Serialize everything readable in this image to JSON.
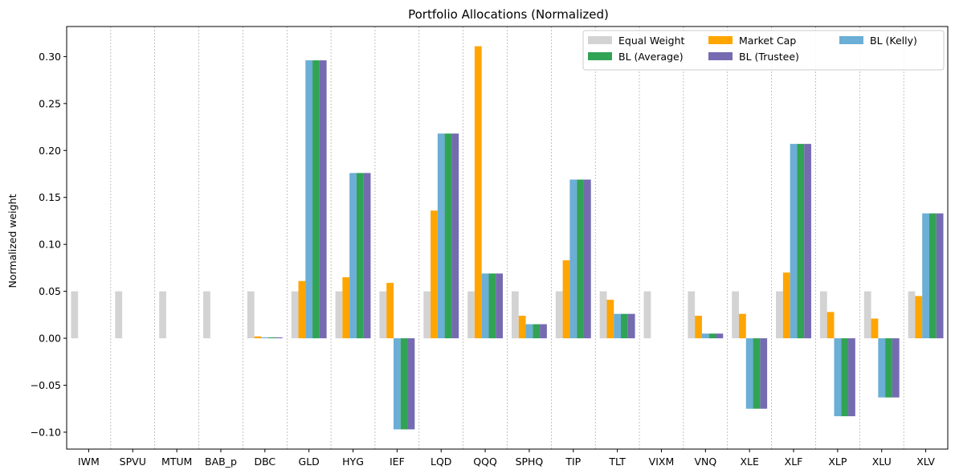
{
  "chart_data": {
    "type": "bar",
    "title": "Portfolio Allocations (Normalized)",
    "xlabel": "",
    "ylabel": "Normalized weight",
    "ylim": [
      -0.118,
      0.332
    ],
    "yticks": [
      -0.1,
      -0.05,
      0.0,
      0.05,
      0.1,
      0.15,
      0.2,
      0.25,
      0.3
    ],
    "ytick_labels": [
      "−0.10",
      "−0.05",
      "0.00",
      "0.05",
      "0.10",
      "0.15",
      "0.20",
      "0.25",
      "0.30"
    ],
    "categories": [
      "IWM",
      "SPVU",
      "MTUM",
      "BAB_p",
      "DBC",
      "GLD",
      "HYG",
      "IEF",
      "LQD",
      "QQQ",
      "SPHQ",
      "TIP",
      "TLT",
      "VIXM",
      "VNQ",
      "XLE",
      "XLF",
      "XLP",
      "XLU",
      "XLV"
    ],
    "grid": "vertical dashed separators between categories",
    "legend": {
      "placement": "top-right",
      "columns": 3
    },
    "series": [
      {
        "name": "Equal Weight",
        "color": "#d3d3d3",
        "values": [
          0.05,
          0.05,
          0.05,
          0.05,
          0.05,
          0.05,
          0.05,
          0.05,
          0.05,
          0.05,
          0.05,
          0.05,
          0.05,
          0.05,
          0.05,
          0.05,
          0.05,
          0.05,
          0.05,
          0.05
        ]
      },
      {
        "name": "Market Cap",
        "color": "#ffa500",
        "values": [
          0,
          0,
          0,
          0,
          0.002,
          0.061,
          0.065,
          0.059,
          0.136,
          0.311,
          0.024,
          0.083,
          0.041,
          0,
          0.024,
          0.026,
          0.07,
          0.028,
          0.021,
          0.045
        ]
      },
      {
        "name": "BL (Kelly)",
        "color": "#6baed6",
        "values": [
          0,
          0,
          0,
          0,
          0.001,
          0.296,
          0.176,
          -0.097,
          0.218,
          0.069,
          0.015,
          0.169,
          0.026,
          0,
          0.005,
          -0.075,
          0.207,
          -0.083,
          -0.063,
          0.133
        ]
      },
      {
        "name": "BL (Average)",
        "color": "#31a354",
        "values": [
          0,
          0,
          0,
          0,
          0.001,
          0.296,
          0.176,
          -0.097,
          0.218,
          0.069,
          0.015,
          0.169,
          0.026,
          0,
          0.005,
          -0.075,
          0.207,
          -0.083,
          -0.063,
          0.133
        ]
      },
      {
        "name": "BL (Trustee)",
        "color": "#756bb1",
        "values": [
          0,
          0,
          0,
          0,
          0.001,
          0.296,
          0.176,
          -0.097,
          0.218,
          0.069,
          0.015,
          0.169,
          0.026,
          0,
          0.005,
          -0.075,
          0.207,
          -0.083,
          -0.063,
          0.133
        ]
      }
    ]
  }
}
